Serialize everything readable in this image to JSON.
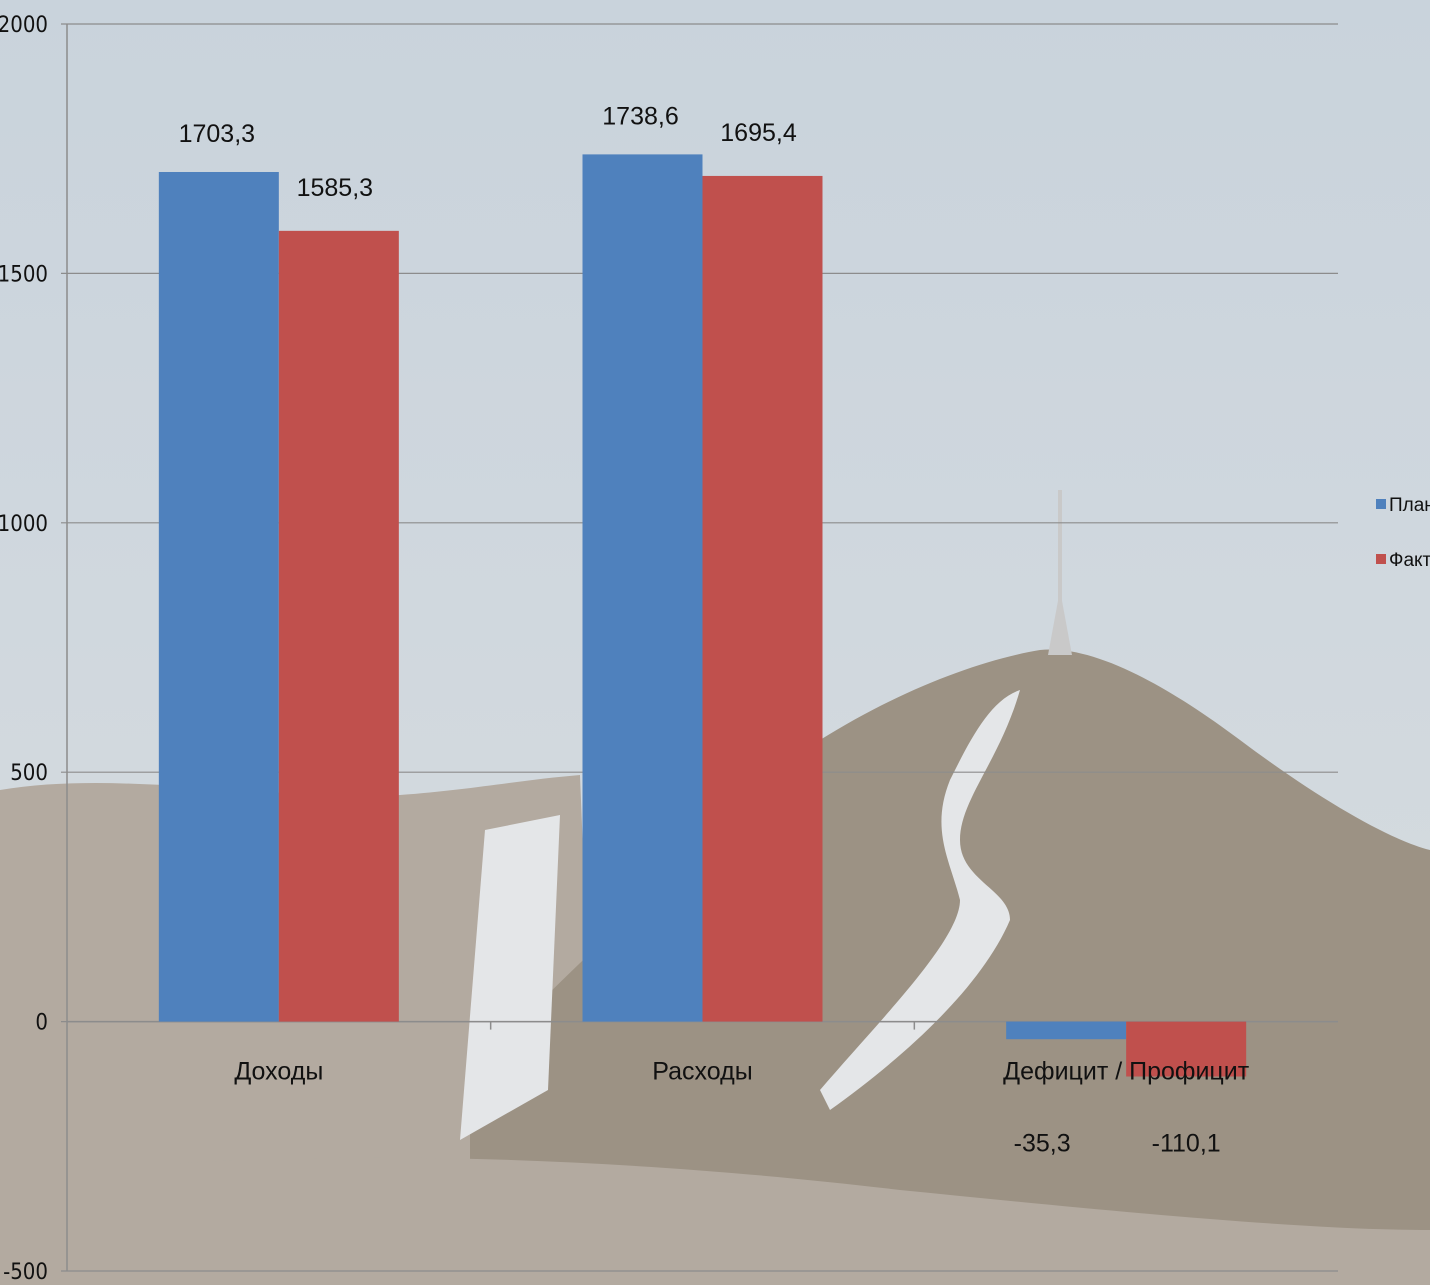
{
  "colors": {
    "plan": "#4f81bd",
    "fact": "#c0504d",
    "sky_top": "#c9d3dc",
    "sky_bottom": "#d8dde0",
    "mountain": "#9c9284",
    "mountain_far": "#b3aaa0",
    "snow": "#e4e6e8",
    "grid": "#8c8c8c",
    "axis": "#8c8c8c"
  },
  "chart_data": {
    "type": "bar",
    "categories": [
      "Доходы",
      "Расходы",
      "Дефицит / Профицит"
    ],
    "series": [
      {
        "name": "План",
        "values": [
          1703.3,
          1738.6,
          -35.3
        ],
        "labels": [
          "1703,3",
          "1738,6",
          "-35,3"
        ]
      },
      {
        "name": "Факт",
        "values": [
          1585.3,
          1695.4,
          -110.1
        ],
        "labels": [
          "1585,3",
          "1695,4",
          "-110,1"
        ]
      }
    ],
    "ylim": [
      -500,
      2000
    ],
    "yticks": [
      -500,
      0,
      500,
      1000,
      1500,
      2000
    ],
    "grid": true,
    "legend": "right"
  }
}
